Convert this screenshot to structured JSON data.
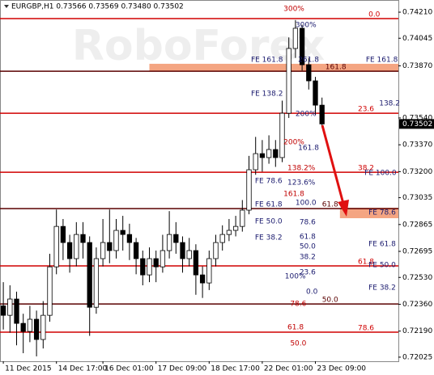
{
  "chart_data": {
    "type": "candlestick",
    "title": "EURGBP,H1  0.73566 0.73569 0.73480 0.73502",
    "watermark": "RoboForex",
    "xlim": [
      -0.5,
      59.5
    ],
    "ylim": [
      0.71999,
      0.74287
    ],
    "xticks": [
      {
        "value": 0,
        "label": "11 Dec 2015"
      },
      {
        "value": 8,
        "label": "14 Dec 17:00"
      },
      {
        "value": 15,
        "label": "16 Dec 01:00"
      },
      {
        "value": 23,
        "label": "17 Dec 09:00"
      },
      {
        "value": 31,
        "label": "18 Dec 17:00"
      },
      {
        "value": 39,
        "label": "22 Dec 01:00"
      },
      {
        "value": 47,
        "label": "23 Dec 09:00"
      }
    ],
    "yticks": [
      {
        "value": 0.7421,
        "label": "0.74210"
      },
      {
        "value": 0.74045,
        "label": "0.74045"
      },
      {
        "value": 0.7387,
        "label": "0.73870"
      },
      {
        "value": 0.7354,
        "label": "0.73540"
      },
      {
        "value": 0.7337,
        "label": "0.73370"
      },
      {
        "value": 0.732,
        "label": "0.73200"
      },
      {
        "value": 0.73035,
        "label": "0.73035"
      },
      {
        "value": 0.72865,
        "label": "0.72865"
      },
      {
        "value": 0.72695,
        "label": "0.72695"
      },
      {
        "value": 0.7253,
        "label": "0.72530"
      },
      {
        "value": 0.7236,
        "label": "0.72360"
      },
      {
        "value": 0.7219,
        "label": "0.72190"
      },
      {
        "value": 0.72025,
        "label": "0.72025"
      }
    ],
    "last_price": {
      "value": 0.73502,
      "label": "0.73502"
    },
    "open": [
      0.7235,
      0.7229,
      0.72393,
      0.72239,
      0.72188,
      0.72265,
      0.72137,
      0.7229,
      0.72597,
      0.72853,
      0.72751,
      0.72649,
      0.72802,
      0.72751,
      0.72341,
      0.72649,
      0.72751,
      0.727,
      0.72828,
      0.72802,
      0.72751,
      0.72649,
      0.72546,
      0.72649,
      0.72597,
      0.727,
      0.72802,
      0.72751,
      0.72649,
      0.727,
      0.72546,
      0.72495,
      0.72649,
      0.72751,
      0.72802,
      0.72828,
      0.72853,
      0.72956,
      0.73212,
      0.73314,
      0.73289,
      0.7334,
      0.73289,
      0.7357,
      0.7398,
      0.74108,
      0.73877,
      0.73775,
      0.73621
    ],
    "high": [
      0.725,
      0.7248,
      0.7244,
      0.723,
      0.7235,
      0.7232,
      0.7238,
      0.7268,
      0.7296,
      0.729,
      0.728,
      0.7288,
      0.7288,
      0.7279,
      0.7272,
      0.729,
      0.7296,
      0.729,
      0.7292,
      0.7287,
      0.7278,
      0.727,
      0.7272,
      0.727,
      0.728,
      0.7295,
      0.7288,
      0.7279,
      0.7278,
      0.7274,
      0.726,
      0.727,
      0.728,
      0.7286,
      0.729,
      0.7292,
      0.7302,
      0.733,
      0.7342,
      0.734,
      0.7343,
      0.734,
      0.7365,
      0.7405,
      0.7416,
      0.7413,
      0.7392,
      0.738,
      0.73669
    ],
    "low": [
      0.722,
      0.7218,
      0.721,
      0.7205,
      0.7212,
      0.7203,
      0.7208,
      0.7225,
      0.7255,
      0.7264,
      0.7256,
      0.726,
      0.7265,
      0.7216,
      0.723,
      0.726,
      0.7262,
      0.7265,
      0.727,
      0.7264,
      0.7255,
      0.7248,
      0.725,
      0.725,
      0.7256,
      0.7265,
      0.7268,
      0.7256,
      0.726,
      0.7242,
      0.724,
      0.7245,
      0.726,
      0.727,
      0.7276,
      0.7279,
      0.7282,
      0.7293,
      0.7318,
      0.732,
      0.7325,
      0.7323,
      0.7326,
      0.7354,
      0.7392,
      0.7384,
      0.7372,
      0.7356,
      0.7348
    ],
    "close": [
      0.7229,
      0.72393,
      0.72239,
      0.72188,
      0.72265,
      0.72137,
      0.7229,
      0.72597,
      0.72853,
      0.72751,
      0.72649,
      0.72802,
      0.72751,
      0.72341,
      0.72649,
      0.72751,
      0.727,
      0.72828,
      0.72802,
      0.72751,
      0.72649,
      0.72546,
      0.72649,
      0.72597,
      0.727,
      0.72802,
      0.72751,
      0.72649,
      0.727,
      0.72546,
      0.72495,
      0.72649,
      0.72751,
      0.72802,
      0.72828,
      0.72853,
      0.72956,
      0.73212,
      0.73314,
      0.73289,
      0.7334,
      0.73289,
      0.7357,
      0.7398,
      0.74108,
      0.73877,
      0.73775,
      0.73621,
      0.73502
    ],
    "bands": [
      {
        "x": [
          22,
          59.5
        ],
        "y": [
          0.73836,
          0.73883
        ],
        "color": "#f4a582"
      },
      {
        "x": [
          50.7,
          59.5
        ],
        "y": [
          0.72905,
          0.72971
        ],
        "color": "#f4a582"
      }
    ],
    "levels": [
      {
        "value": 0.74169,
        "label": "0.0",
        "label_x": 55,
        "color": "#d00000"
      },
      {
        "value": 0.73836,
        "label": "161.8",
        "label_x": 48.5,
        "color": "#5a0000"
      },
      {
        "value": 0.7357,
        "label": "23.6",
        "label_x": 53.4,
        "color": "#d00000"
      },
      {
        "value": 0.73196,
        "label": "38.2",
        "label_x": 53.4,
        "color": "#d00000"
      },
      {
        "value": 0.72966,
        "label": "61.8",
        "label_x": 48,
        "color": "#5a0000"
      },
      {
        "value": 0.72603,
        "label": "61.8",
        "label_x": 53.4,
        "color": "#d00000"
      },
      {
        "value": 0.72362,
        "label": "50.0",
        "label_x": 48,
        "color": "#5a0000"
      },
      {
        "value": 0.72183,
        "label": "78.6",
        "label_x": 53.4,
        "color": "#d00000"
      }
    ],
    "annotations": [
      {
        "color": "#c00000",
        "items": [
          {
            "text": "300%",
            "x": 42.2,
            "y": 0.74205
          },
          {
            "text": "200%",
            "x": 42.2,
            "y": 0.7336
          },
          {
            "text": "138.2%",
            "x": 42.8,
            "y": 0.73196
          },
          {
            "text": "161.8",
            "x": 42.2,
            "y": 0.73033
          },
          {
            "text": "78.6",
            "x": 43.2,
            "y": 0.72336
          },
          {
            "text": "61.8",
            "x": 42.8,
            "y": 0.72188
          },
          {
            "text": "50.0",
            "x": 43.2,
            "y": 0.72085
          }
        ]
      },
      {
        "color": "#1a1a6e",
        "items": [
          {
            "text": "300%",
            "x": 44,
            "y": 0.74103
          },
          {
            "text": "FE 161.8",
            "x": 37.3,
            "y": 0.73883
          },
          {
            "text": "261.8",
            "x": 44.4,
            "y": 0.73883
          },
          {
            "text": "FE 161.8",
            "x": 54.6,
            "y": 0.73883
          },
          {
            "text": "FE 138.2",
            "x": 37.3,
            "y": 0.73668
          },
          {
            "text": "138.2",
            "x": 56.6,
            "y": 0.73606
          },
          {
            "text": "200%",
            "x": 44,
            "y": 0.7354
          },
          {
            "text": "161.8",
            "x": 44.4,
            "y": 0.73324
          },
          {
            "text": "FE 100.0",
            "x": 54.4,
            "y": 0.73166
          },
          {
            "text": "FE 78.6",
            "x": 37.9,
            "y": 0.73115
          },
          {
            "text": "123.6%",
            "x": 42.8,
            "y": 0.73104
          },
          {
            "text": "FE 61.8",
            "x": 37.9,
            "y": 0.72966
          },
          {
            "text": "100.0",
            "x": 44,
            "y": 0.72976
          },
          {
            "text": "FE 78.6",
            "x": 55,
            "y": 0.72915
          },
          {
            "text": "FE 50.0",
            "x": 37.9,
            "y": 0.72859
          },
          {
            "text": "78.6",
            "x": 44.6,
            "y": 0.72853
          },
          {
            "text": "FE 38.2",
            "x": 37.9,
            "y": 0.72756
          },
          {
            "text": "61.8",
            "x": 44.6,
            "y": 0.72761
          },
          {
            "text": "FE 61.8",
            "x": 55,
            "y": 0.72715
          },
          {
            "text": "50.0",
            "x": 44.6,
            "y": 0.727
          },
          {
            "text": "38.2",
            "x": 44.6,
            "y": 0.72633
          },
          {
            "text": "FE 50.0",
            "x": 55,
            "y": 0.72582
          },
          {
            "text": "23.6",
            "x": 44.6,
            "y": 0.72536
          },
          {
            "text": "100%",
            "x": 42.4,
            "y": 0.7251
          },
          {
            "text": "FE 38.2",
            "x": 55,
            "y": 0.72439
          },
          {
            "text": "0.0",
            "x": 45.6,
            "y": 0.72413
          }
        ]
      }
    ]
  }
}
